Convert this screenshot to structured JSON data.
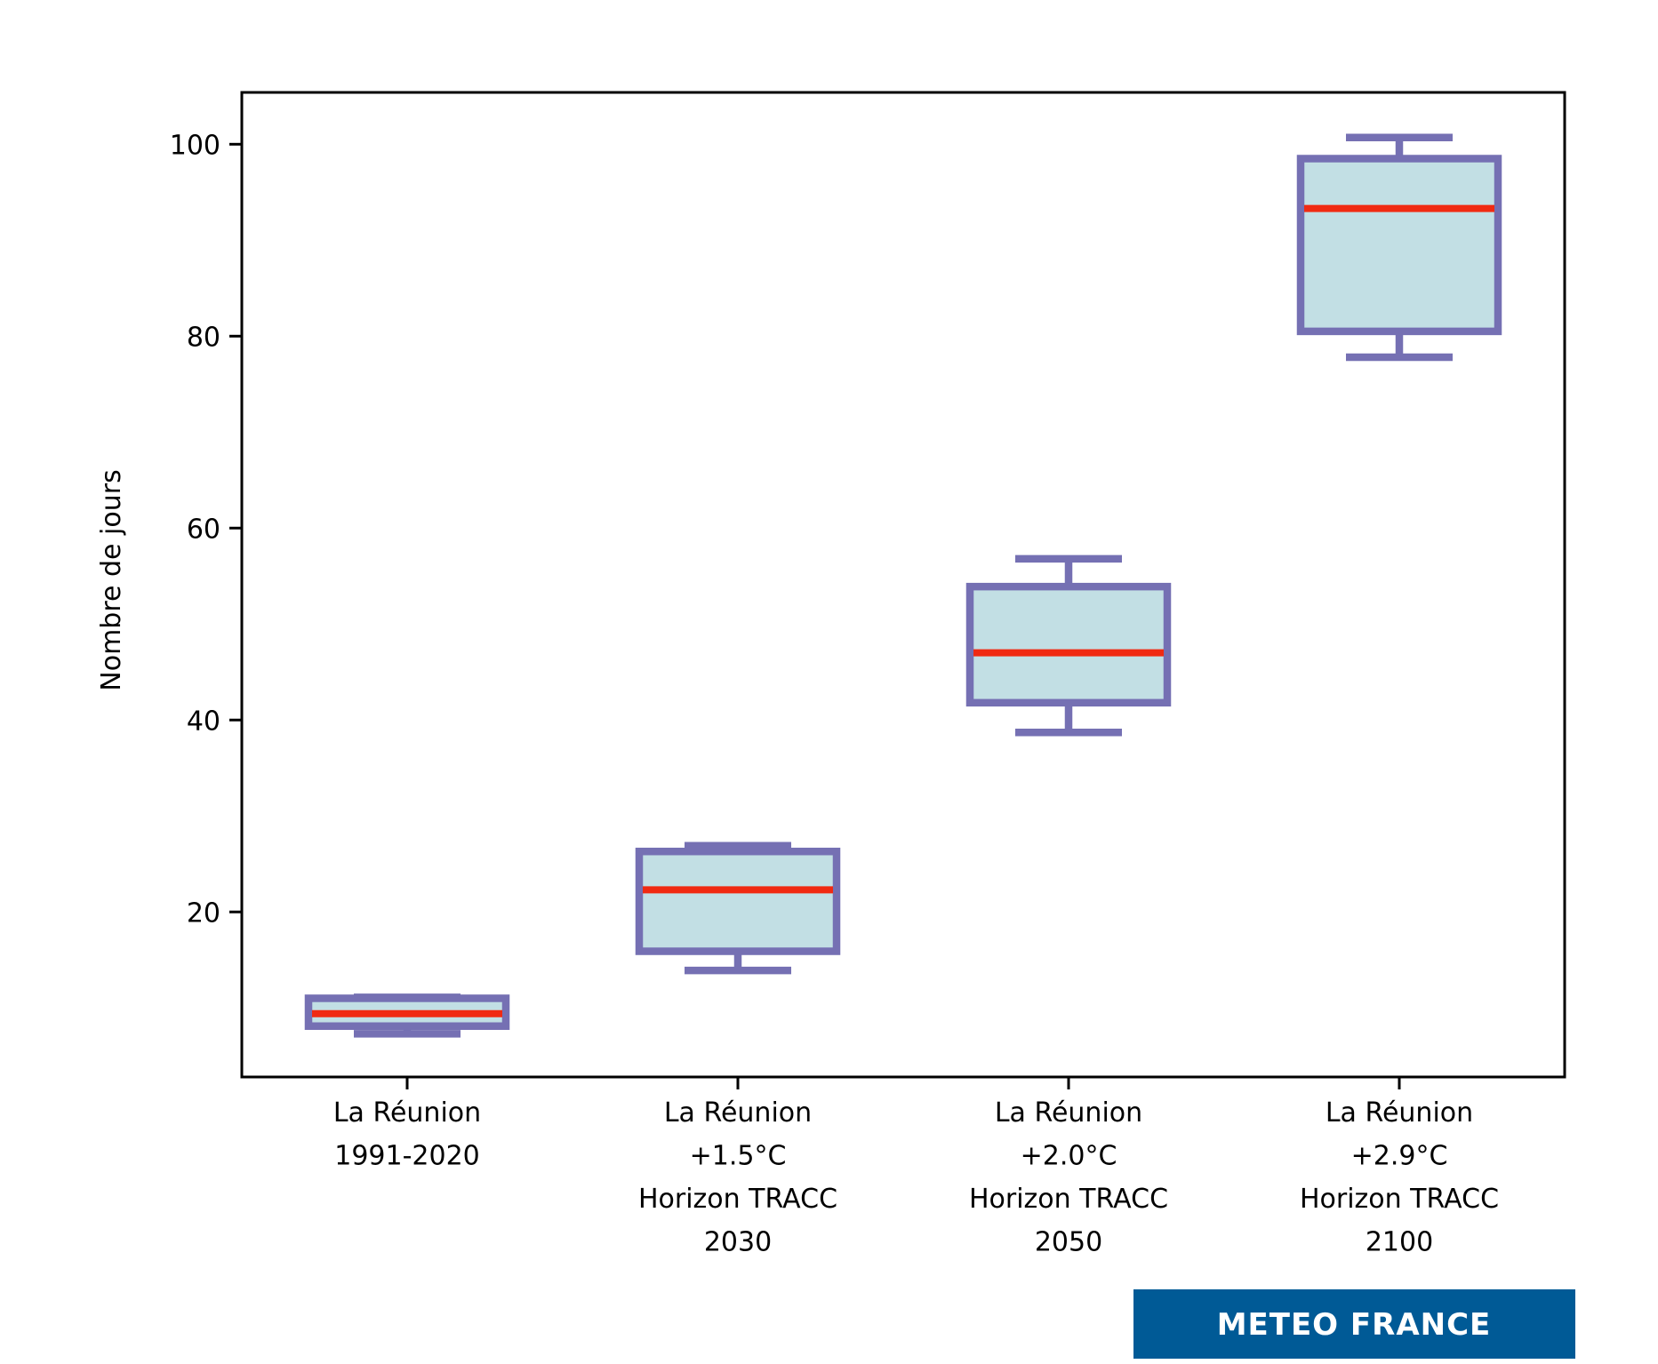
{
  "chart_data": {
    "type": "boxplot",
    "title": "",
    "xlabel": "",
    "ylabel": "Nombre de jours",
    "ylim": [
      2.8,
      105.4
    ],
    "yticks": [
      20,
      40,
      60,
      80,
      100
    ],
    "ytick_labels": [
      "20",
      "40",
      "60",
      "80",
      "100"
    ],
    "grid": false,
    "legend": null,
    "categories": [
      [
        "La Réunion",
        "1991-2020"
      ],
      [
        "La Réunion",
        "+1.5°C",
        "Horizon TRACC",
        "2030"
      ],
      [
        "La Réunion",
        "+2.0°C",
        "Horizon TRACC",
        "2050"
      ],
      [
        "La Réunion",
        "+2.9°C",
        "Horizon TRACC",
        "2100"
      ]
    ],
    "boxes": [
      {
        "whislo": 7.3,
        "q1": 8.1,
        "med": 9.4,
        "q3": 11.0,
        "whishi": 11.1
      },
      {
        "whislo": 13.9,
        "q1": 15.9,
        "med": 22.3,
        "q3": 26.3,
        "whishi": 26.9
      },
      {
        "whislo": 38.7,
        "q1": 41.8,
        "med": 47.0,
        "q3": 53.9,
        "whishi": 56.8
      },
      {
        "whislo": 77.8,
        "q1": 80.5,
        "med": 93.3,
        "q3": 98.5,
        "whishi": 100.7
      }
    ],
    "colors": {
      "box_edge": "#7570B3",
      "box_fill": "#C2DFE4",
      "median": "#F02A12",
      "axis": "#000000"
    }
  },
  "logo": {
    "text": "METEO FRANCE",
    "background": "#005A96"
  }
}
